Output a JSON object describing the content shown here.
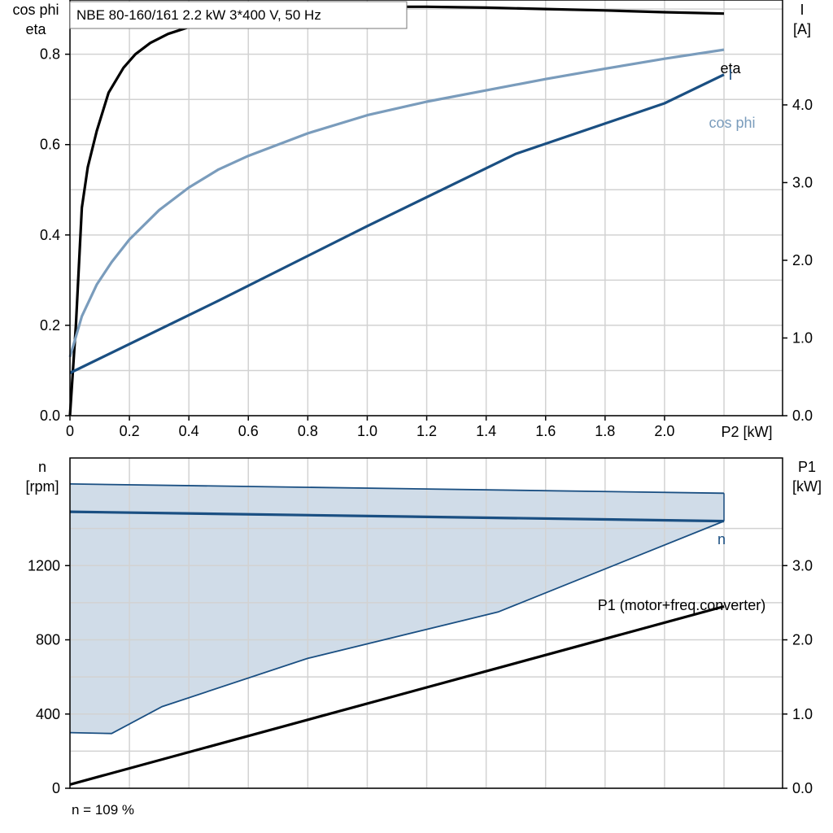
{
  "chart_data": [
    {
      "type": "line",
      "title": "NBE 80-160/161   2.2 kW   3*400 V, 50 Hz",
      "x_unit_label": "P2 [kW]",
      "xlim": [
        0,
        2.2
      ],
      "x_ticks": [
        "0",
        "0.2",
        "0.4",
        "0.6",
        "0.8",
        "1.0",
        "1.2",
        "1.4",
        "1.6",
        "1.8",
        "2.0"
      ],
      "y_left_label_top": "cos phi",
      "y_left_label_bottom": "eta",
      "y_left_lim": [
        0,
        0.92
      ],
      "y_left_ticks": [
        "0.0",
        "0.2",
        "0.4",
        "0.6",
        "0.8"
      ],
      "y_right_label_top": "I",
      "y_right_label_bottom": "[A]",
      "y_right_lim": [
        0,
        5.35
      ],
      "y_right_ticks": [
        "0.0",
        "1.0",
        "2.0",
        "3.0",
        "4.0"
      ],
      "series": [
        {
          "name": "eta",
          "axis": "left",
          "color": "#000000",
          "x": [
            0,
            0.02,
            0.04,
            0.06,
            0.09,
            0.13,
            0.18,
            0.22,
            0.27,
            0.33,
            0.4,
            0.5,
            0.6,
            0.8,
            1.0,
            1.2,
            1.4,
            1.6,
            1.8,
            2.0,
            2.2
          ],
          "y": [
            0.0,
            0.2,
            0.46,
            0.55,
            0.63,
            0.715,
            0.77,
            0.8,
            0.825,
            0.845,
            0.86,
            0.875,
            0.885,
            0.9,
            0.905,
            0.905,
            0.903,
            0.9,
            0.897,
            0.893,
            0.89
          ]
        },
        {
          "name": "cos phi",
          "axis": "left",
          "color": "#7a9cbc",
          "x": [
            0,
            0.04,
            0.09,
            0.14,
            0.2,
            0.3,
            0.4,
            0.5,
            0.6,
            0.8,
            1.0,
            1.2,
            1.4,
            1.6,
            1.8,
            2.0,
            2.2
          ],
          "y": [
            0.13,
            0.22,
            0.29,
            0.34,
            0.39,
            0.455,
            0.505,
            0.545,
            0.575,
            0.625,
            0.665,
            0.695,
            0.72,
            0.745,
            0.768,
            0.79,
            0.81
          ]
        },
        {
          "name": "I",
          "axis": "right",
          "color": "#1a4f82",
          "x": [
            0,
            0.5,
            1.0,
            1.5,
            2.0,
            2.2
          ],
          "y": [
            0.55,
            1.48,
            2.44,
            3.37,
            4.02,
            4.39
          ]
        }
      ]
    },
    {
      "type": "line",
      "xlabel": "",
      "xlim": [
        0,
        2.2
      ],
      "y_left_label_top": "n",
      "y_left_label_bottom": "[rpm]",
      "y_left_lim": [
        0,
        1780
      ],
      "y_left_ticks": [
        "0",
        "400",
        "800",
        "1200"
      ],
      "y_right_label_top": "P1",
      "y_right_label_bottom": "[kW]",
      "y_right_lim": [
        0,
        4.45
      ],
      "y_right_ticks": [
        "0.0",
        "1.0",
        "2.0",
        "3.0"
      ],
      "operating_range": {
        "color": "#d0dce8",
        "edge_color": "#1a4f82",
        "upper_x": [
          0,
          2.2
        ],
        "upper_y": [
          1640,
          1590
        ],
        "lower_x": [
          0,
          0.14,
          0.31,
          0.8,
          1.44,
          2.2
        ],
        "lower_y": [
          300,
          295,
          440,
          700,
          950,
          1440
        ]
      },
      "series": [
        {
          "name": "n",
          "axis": "left",
          "color": "#1a4f82",
          "x": [
            0,
            2.2
          ],
          "y": [
            1490,
            1440
          ]
        },
        {
          "name": "P1 (motor+freq.converter)",
          "axis": "right",
          "color": "#000000",
          "x": [
            0,
            2.2
          ],
          "y": [
            0.05,
            2.45
          ]
        }
      ],
      "note": "n = 109 %"
    }
  ]
}
